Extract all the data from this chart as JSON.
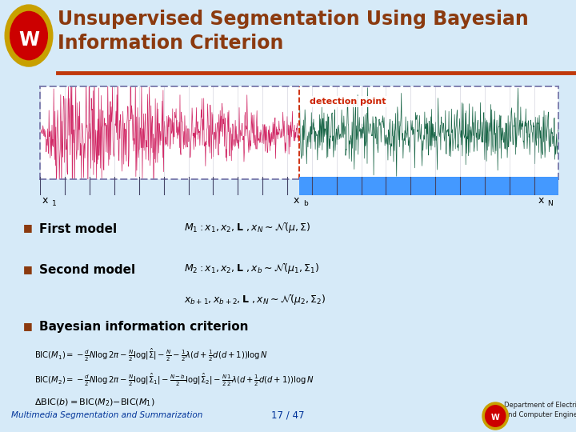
{
  "bg_color": "#d6eaf8",
  "title_line1": "Unsupervised Segmentation Using Bayesian",
  "title_line2": "Information Criterion",
  "title_color": "#8B3A0F",
  "title_bg": "#ffffff",
  "header_line_color": "#c0390b",
  "waveform_bg": "#ffffff",
  "detection_label": "detection point",
  "detection_color": "#cc2200",
  "x1_label": "x",
  "xb_label": "x",
  "xN_label": "x",
  "segment1_color": "#e0f4f4",
  "segment2_color": "#4499ff",
  "bullet_color": "#8B3A0F",
  "item1": "First model",
  "item2": "Second model",
  "item3": "Bayesian information criterion",
  "footer_left": "Multimedia Segmentation and Summarization",
  "footer_center": "17 / 47",
  "footer_color": "#003399",
  "logo_text": "Department of Electrical\nand Computer Engineering"
}
